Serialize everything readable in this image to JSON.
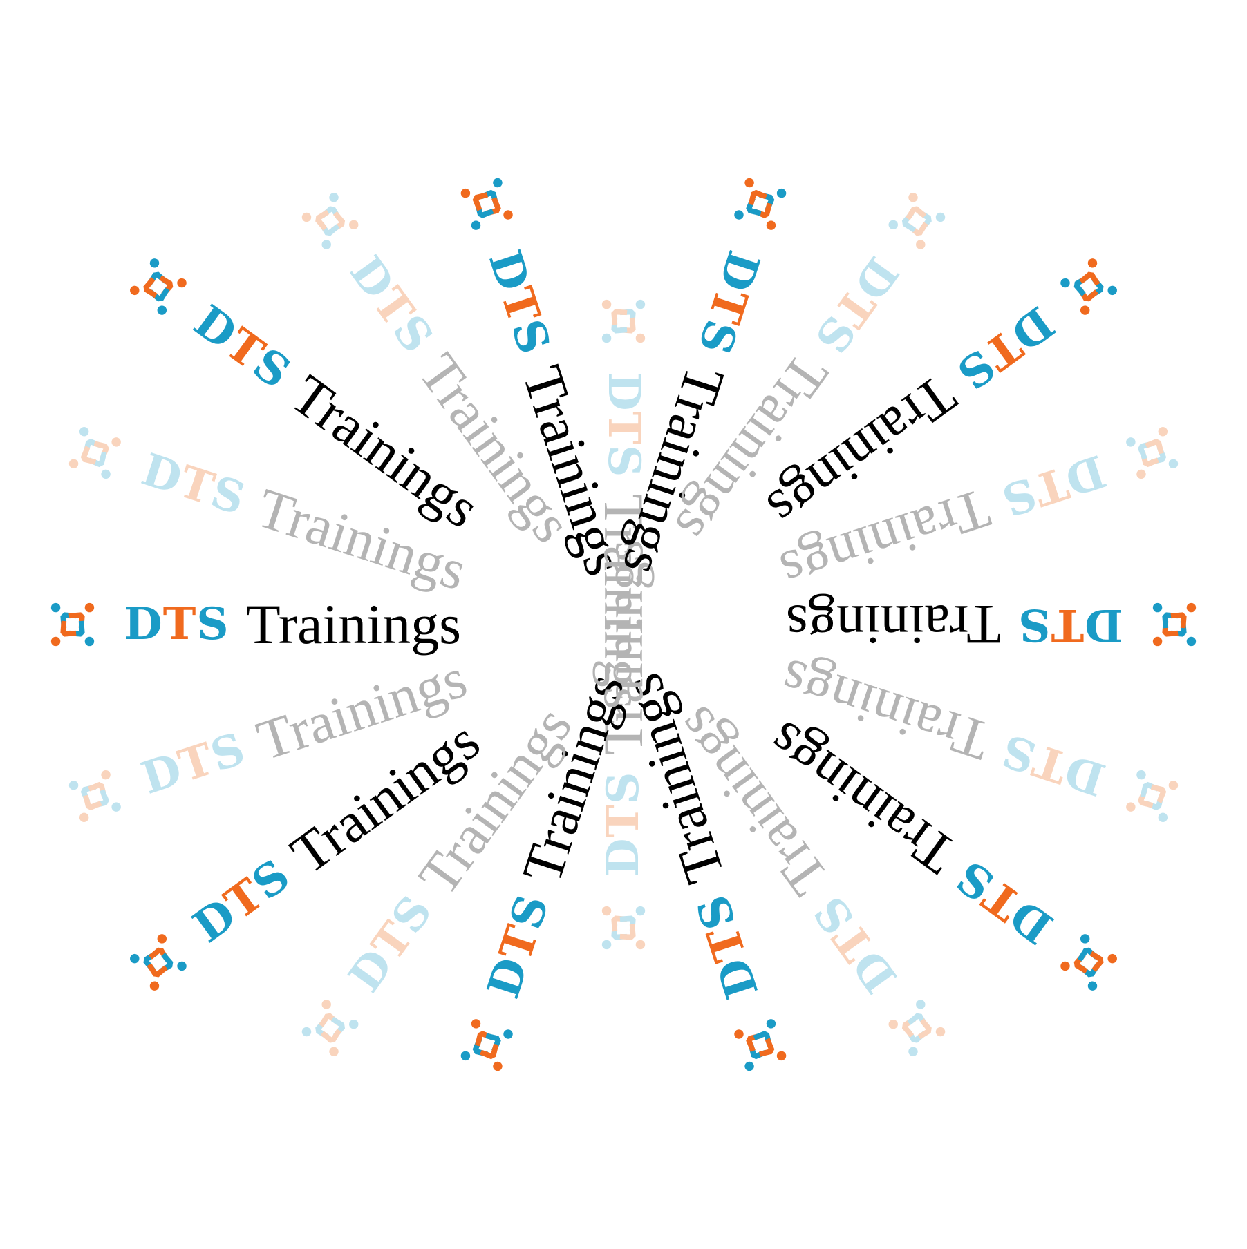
{
  "brand": {
    "name": "DTS",
    "tagline": "Trainings",
    "logo_icon": "four-people-circle-icon"
  },
  "colors": {
    "blue": "#1a9bc6",
    "orange": "#f06a1e",
    "text_dark": "#000000",
    "text_faded": "#b4b4b4",
    "blue_faded": "#bfe3ef",
    "orange_faded": "#f9d4bd"
  },
  "arrangement": {
    "count": 20,
    "pattern": "alternating bold and faded lockups radiating from center"
  }
}
